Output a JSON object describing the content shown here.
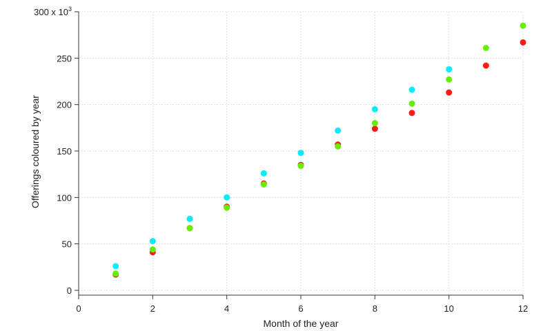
{
  "chart_data": {
    "type": "scatter",
    "title": "",
    "xlabel": "Month of the year",
    "ylabel": "Offerings coloured by year",
    "xlim": [
      0,
      12
    ],
    "ylim": [
      0,
      300000
    ],
    "x_ticks": [
      0,
      2,
      4,
      6,
      8,
      10,
      12
    ],
    "y_ticks": [
      0,
      50000,
      100000,
      150000,
      200000,
      250000,
      300000
    ],
    "y_tick_labels": [
      "0",
      "50",
      "100",
      "150",
      "200",
      "250",
      "300 x 10"
    ],
    "y_multiplier_exponent": "3",
    "grid": true,
    "legend": "none",
    "series": [
      {
        "color": "#ff1a1a",
        "points": [
          [
            1,
            17000
          ],
          [
            2,
            41000
          ],
          [
            3,
            67000
          ],
          [
            4,
            90000
          ],
          [
            5,
            115000
          ],
          [
            6,
            135000
          ],
          [
            7,
            157000
          ],
          [
            8,
            174000
          ],
          [
            9,
            191000
          ],
          [
            10,
            213000
          ],
          [
            11,
            242000
          ],
          [
            12,
            267000
          ]
        ]
      },
      {
        "color": "#00eeff",
        "points": [
          [
            1,
            26000
          ],
          [
            2,
            53000
          ],
          [
            3,
            77000
          ],
          [
            4,
            100000
          ],
          [
            5,
            126000
          ],
          [
            6,
            148000
          ],
          [
            7,
            172000
          ],
          [
            8,
            195000
          ],
          [
            9,
            216000
          ],
          [
            10,
            238000
          ]
        ]
      },
      {
        "color": "#66ee00",
        "points": [
          [
            1,
            18000
          ],
          [
            2,
            44000
          ],
          [
            3,
            67000
          ],
          [
            4,
            89000
          ],
          [
            5,
            114000
          ],
          [
            6,
            134000
          ],
          [
            7,
            155000
          ],
          [
            8,
            180000
          ],
          [
            9,
            201000
          ],
          [
            10,
            227000
          ],
          [
            11,
            261000
          ],
          [
            12,
            285000
          ]
        ]
      }
    ]
  }
}
